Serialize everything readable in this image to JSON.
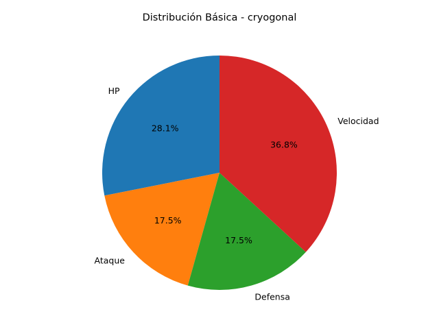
{
  "chart_data": {
    "type": "pie",
    "title": "Distribución Básica - cryogonal",
    "categories": [
      "HP",
      "Ataque",
      "Defensa",
      "Velocidad"
    ],
    "values": [
      28.1,
      17.5,
      17.5,
      36.8
    ],
    "value_labels": [
      "28.1%",
      "17.5%",
      "17.5%",
      "36.8%"
    ],
    "colors": [
      "#1f77b4",
      "#ff7f0e",
      "#2ca02c",
      "#d62728"
    ],
    "start_angle_deg": 90,
    "direction": "counterclockwise",
    "legend": "none"
  }
}
